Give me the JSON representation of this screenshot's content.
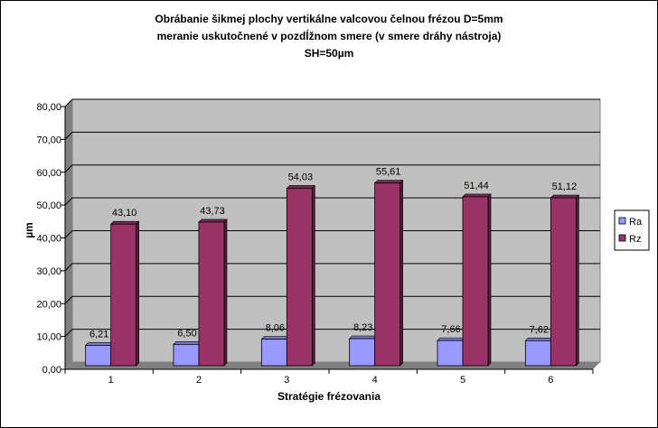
{
  "chart_data": {
    "type": "bar",
    "title_lines": [
      "Obrábanie šikmej plochy vertikálne valcovou čelnou frézou D=5mm",
      "meranie uskutočnené v pozdĺžnom smere  (v smere dráhy nástroja)",
      "SH=50µm"
    ],
    "xlabel": "Stratégie frézovania",
    "ylabel": "µm",
    "categories": [
      "1",
      "2",
      "3",
      "4",
      "5",
      "6"
    ],
    "y_ticks": [
      "0,00",
      "10,00",
      "20,00",
      "30,00",
      "40,00",
      "50,00",
      "60,00",
      "70,00",
      "80,00"
    ],
    "ylim": [
      0,
      80
    ],
    "grid": true,
    "legend_position": "right",
    "series": [
      {
        "name": "Ra",
        "color": "#9999FF",
        "values": [
          6.21,
          6.5,
          8.06,
          8.23,
          7.66,
          7.62
        ],
        "labels": [
          "6,21",
          "6,50",
          "8,06",
          "8,23",
          "7,66",
          "7,62"
        ]
      },
      {
        "name": "Rz",
        "color": "#993366",
        "values": [
          43.1,
          43.73,
          54.03,
          55.61,
          51.44,
          51.12
        ],
        "labels": [
          "43,10",
          "43,73",
          "54,03",
          "55,61",
          "51,44",
          "51,12"
        ]
      }
    ],
    "plot_background": "#C0C0C0"
  }
}
